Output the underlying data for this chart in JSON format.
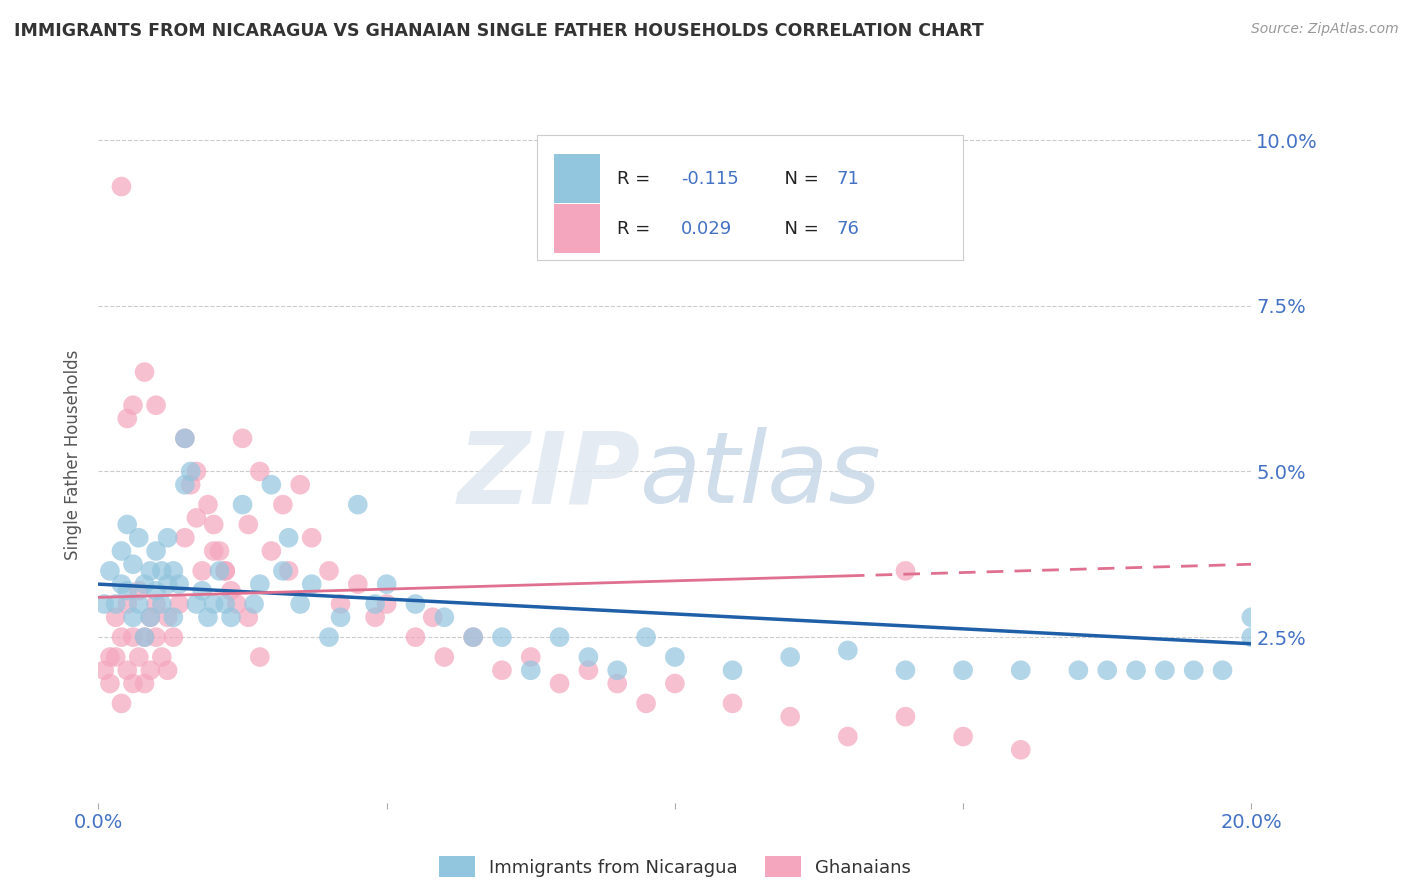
{
  "title": "IMMIGRANTS FROM NICARAGUA VS GHANAIAN SINGLE FATHER HOUSEHOLDS CORRELATION CHART",
  "source_text": "Source: ZipAtlas.com",
  "ylabel": "Single Father Households",
  "x_min": 0.0,
  "x_max": 0.2,
  "y_min": 0.0,
  "y_max": 0.105,
  "y_ticks": [
    0.025,
    0.05,
    0.075,
    0.1
  ],
  "y_tick_labels": [
    "2.5%",
    "5.0%",
    "7.5%",
    "10.0%"
  ],
  "blue_color": "#92c5de",
  "pink_color": "#f4a6be",
  "trend_blue_color": "#1e5fa8",
  "trend_pink_color": "#e07090",
  "trend_blue_start": 0.033,
  "trend_blue_end": 0.024,
  "trend_pink_start": 0.031,
  "trend_pink_end": 0.036,
  "legend_label1": "Immigrants from Nicaragua",
  "legend_label2": "Ghanaians",
  "blue_scatter_x": [
    0.001,
    0.002,
    0.003,
    0.004,
    0.004,
    0.005,
    0.005,
    0.006,
    0.006,
    0.007,
    0.007,
    0.008,
    0.008,
    0.009,
    0.009,
    0.01,
    0.01,
    0.011,
    0.011,
    0.012,
    0.012,
    0.013,
    0.013,
    0.014,
    0.015,
    0.015,
    0.016,
    0.017,
    0.018,
    0.019,
    0.02,
    0.021,
    0.022,
    0.023,
    0.025,
    0.027,
    0.028,
    0.03,
    0.032,
    0.033,
    0.035,
    0.037,
    0.04,
    0.042,
    0.045,
    0.048,
    0.05,
    0.055,
    0.06,
    0.065,
    0.07,
    0.075,
    0.08,
    0.085,
    0.09,
    0.095,
    0.1,
    0.11,
    0.12,
    0.13,
    0.14,
    0.15,
    0.16,
    0.17,
    0.175,
    0.18,
    0.185,
    0.19,
    0.195,
    0.2,
    0.2
  ],
  "blue_scatter_y": [
    0.03,
    0.035,
    0.03,
    0.033,
    0.038,
    0.032,
    0.042,
    0.028,
    0.036,
    0.03,
    0.04,
    0.033,
    0.025,
    0.035,
    0.028,
    0.032,
    0.038,
    0.03,
    0.035,
    0.033,
    0.04,
    0.028,
    0.035,
    0.033,
    0.055,
    0.048,
    0.05,
    0.03,
    0.032,
    0.028,
    0.03,
    0.035,
    0.03,
    0.028,
    0.045,
    0.03,
    0.033,
    0.048,
    0.035,
    0.04,
    0.03,
    0.033,
    0.025,
    0.028,
    0.045,
    0.03,
    0.033,
    0.03,
    0.028,
    0.025,
    0.025,
    0.02,
    0.025,
    0.022,
    0.02,
    0.025,
    0.022,
    0.02,
    0.022,
    0.023,
    0.02,
    0.02,
    0.02,
    0.02,
    0.02,
    0.02,
    0.02,
    0.02,
    0.02,
    0.025,
    0.028
  ],
  "pink_scatter_x": [
    0.001,
    0.002,
    0.002,
    0.003,
    0.003,
    0.004,
    0.004,
    0.005,
    0.005,
    0.006,
    0.006,
    0.007,
    0.007,
    0.008,
    0.008,
    0.009,
    0.009,
    0.01,
    0.01,
    0.011,
    0.012,
    0.012,
    0.013,
    0.014,
    0.015,
    0.015,
    0.016,
    0.017,
    0.018,
    0.02,
    0.021,
    0.022,
    0.023,
    0.025,
    0.026,
    0.028,
    0.03,
    0.032,
    0.033,
    0.035,
    0.037,
    0.04,
    0.042,
    0.045,
    0.048,
    0.05,
    0.055,
    0.058,
    0.06,
    0.065,
    0.07,
    0.075,
    0.08,
    0.085,
    0.09,
    0.095,
    0.1,
    0.11,
    0.12,
    0.13,
    0.14,
    0.15,
    0.16,
    0.017,
    0.019,
    0.02,
    0.022,
    0.024,
    0.026,
    0.028,
    0.01,
    0.008,
    0.006,
    0.005,
    0.004,
    0.14
  ],
  "pink_scatter_y": [
    0.02,
    0.022,
    0.018,
    0.028,
    0.022,
    0.025,
    0.015,
    0.03,
    0.02,
    0.025,
    0.018,
    0.032,
    0.022,
    0.025,
    0.018,
    0.028,
    0.02,
    0.03,
    0.025,
    0.022,
    0.028,
    0.02,
    0.025,
    0.03,
    0.055,
    0.04,
    0.048,
    0.043,
    0.035,
    0.042,
    0.038,
    0.035,
    0.032,
    0.055,
    0.042,
    0.05,
    0.038,
    0.045,
    0.035,
    0.048,
    0.04,
    0.035,
    0.03,
    0.033,
    0.028,
    0.03,
    0.025,
    0.028,
    0.022,
    0.025,
    0.02,
    0.022,
    0.018,
    0.02,
    0.018,
    0.015,
    0.018,
    0.015,
    0.013,
    0.01,
    0.013,
    0.01,
    0.008,
    0.05,
    0.045,
    0.038,
    0.035,
    0.03,
    0.028,
    0.022,
    0.06,
    0.065,
    0.06,
    0.058,
    0.093,
    0.035
  ]
}
